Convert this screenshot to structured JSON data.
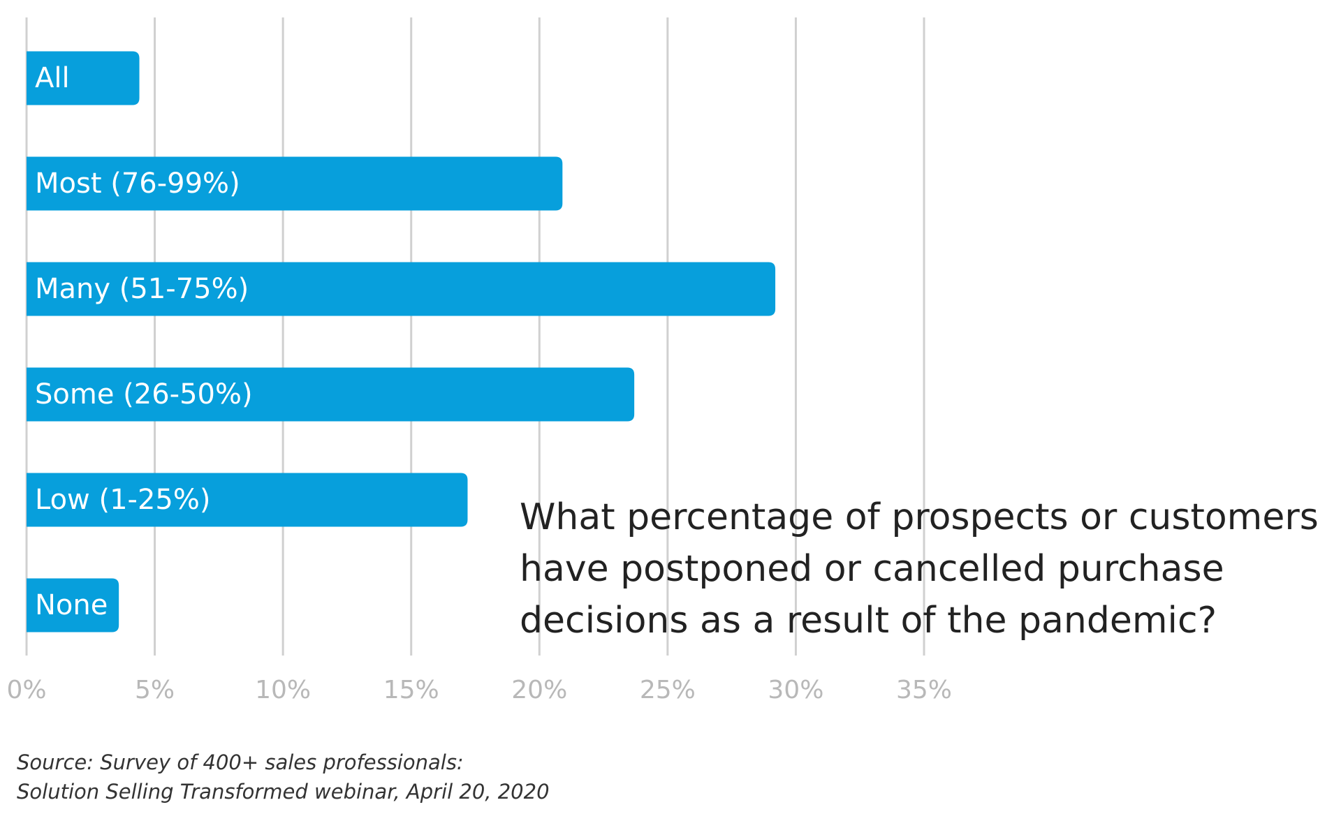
{
  "chart_data": {
    "type": "bar",
    "orientation": "horizontal",
    "title": [
      "What percentage of prospects or customers",
      "have postponed or cancelled purchase",
      "decisions as a result of the pandemic?"
    ],
    "source": [
      "Source: Survey of 400+ sales professionals:",
      "Solution Selling Transformed webinar, April 20, 2020"
    ],
    "categories": [
      "All",
      "Most (76-99%)",
      "Many (51-75%)",
      "Some (26-50%)",
      "Low (1-25%)",
      "None"
    ],
    "values": [
      4.4,
      20.9,
      29.2,
      23.7,
      17.2,
      3.6
    ],
    "color": "#079fdc",
    "xlim": [
      0,
      35
    ],
    "xticks": [
      {
        "value": 0,
        "label": "0%"
      },
      {
        "value": 5,
        "label": "5%"
      },
      {
        "value": 10,
        "label": "10%"
      },
      {
        "value": 15,
        "label": "15%"
      },
      {
        "value": 20,
        "label": "20%"
      },
      {
        "value": 25,
        "label": "25%"
      },
      {
        "value": 30,
        "label": "30%"
      },
      {
        "value": 35,
        "label": "35%"
      }
    ],
    "grid": true
  }
}
